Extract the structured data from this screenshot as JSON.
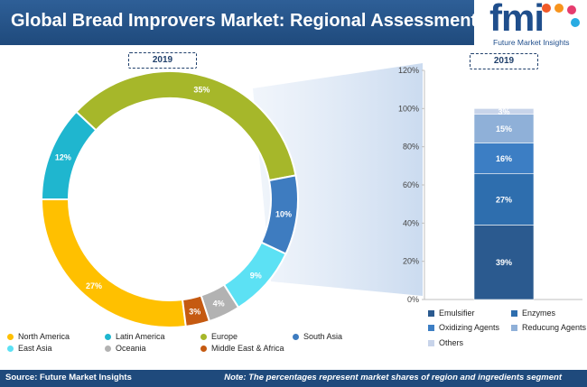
{
  "header": {
    "title": "Global Bread Improvers Market: Regional Assessment"
  },
  "logo": {
    "mark": "fmi",
    "tagline": "Future Market Insights"
  },
  "footer": {
    "source": "Source: Future Market Insights",
    "note": "Note: The percentages represent market shares of region and ingredients segment"
  },
  "chart_data": [
    {
      "type": "pie",
      "style": "donut",
      "year_label": "2019",
      "categories": [
        "North America",
        "Latin America",
        "Europe",
        "South Asia",
        "East Asia",
        "Oceania",
        "Middle East & Africa"
      ],
      "values": [
        27,
        12,
        35,
        10,
        9,
        4,
        3
      ],
      "labels": [
        "27%",
        "12%",
        "35%",
        "10%",
        "9%",
        "4%",
        "3%"
      ],
      "colors": [
        "#ffc000",
        "#1fb6cf",
        "#a6b72a",
        "#3e7cc0",
        "#5ce1f4",
        "#b2b2b2",
        "#c55a11"
      ],
      "legend_position": "bottom"
    },
    {
      "type": "bar",
      "style": "stacked-100",
      "year_label": "2019",
      "categories": [
        "2019"
      ],
      "series": [
        {
          "name": "Emulsifier",
          "values": [
            39
          ],
          "label": "39%",
          "color": "#2b5a8f"
        },
        {
          "name": "Enzymes",
          "values": [
            27
          ],
          "label": "27%",
          "color": "#2e6eae"
        },
        {
          "name": "Oxidizing Agents",
          "values": [
            16
          ],
          "label": "16%",
          "color": "#3c7ec4"
        },
        {
          "name": "Reducung Agents",
          "values": [
            15
          ],
          "label": "15%",
          "color": "#8fb0d8"
        },
        {
          "name": "Others",
          "values": [
            3
          ],
          "label": "3%",
          "color": "#c8d4ea"
        }
      ],
      "ylim": [
        0,
        120
      ],
      "yticks": [
        "0%",
        "20%",
        "40%",
        "60%",
        "80%",
        "100%",
        "120%"
      ],
      "grid": false,
      "legend_position": "bottom"
    }
  ]
}
